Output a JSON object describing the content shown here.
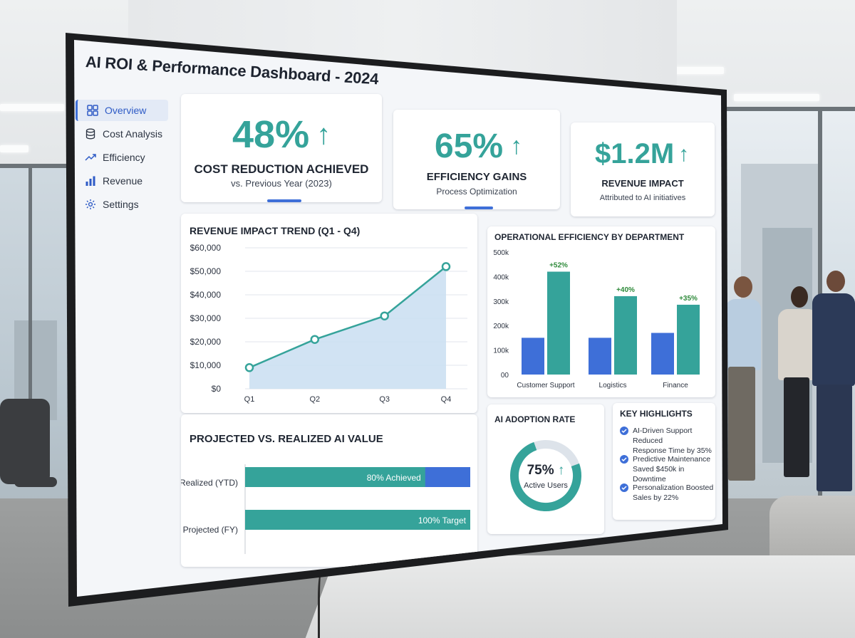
{
  "title": "AI ROI & Performance Dashboard - 2024",
  "colors": {
    "teal": "#35a39a",
    "blue": "#3e6fd8",
    "area_fill": "#c9def1",
    "text": "#1f2632"
  },
  "sidebar": {
    "items": [
      {
        "label": "Overview",
        "icon": "grid-icon",
        "active": true
      },
      {
        "label": "Cost Analysis",
        "icon": "database-icon",
        "active": false
      },
      {
        "label": "Efficiency",
        "icon": "trend-icon",
        "active": false
      },
      {
        "label": "Revenue",
        "icon": "bar-chart-icon",
        "active": false
      },
      {
        "label": "Settings",
        "icon": "gear-icon",
        "active": false
      }
    ]
  },
  "kpis": [
    {
      "value": "48%",
      "arrow": "↑",
      "label": "COST REDUCTION ACHIEVED",
      "sub": "vs. Previous Year (2023)"
    },
    {
      "value": "65%",
      "arrow": "↑",
      "label": "EFFICIENCY GAINS",
      "sub": "Process Optimization"
    },
    {
      "value": "$1.2M",
      "arrow": "↑",
      "label": "REVENUE IMPACT",
      "sub": "Attributed to AI initiatives"
    }
  ],
  "revenue_trend": {
    "title": "REVENUE IMPACT TREND (Q1 - Q4)",
    "y_ticks": [
      "$60,000",
      "$50,000",
      "$40,000",
      "$30,000",
      "$20,000",
      "$10,000",
      "$0"
    ],
    "x_ticks": [
      "Q1",
      "Q2",
      "Q3",
      "Q4"
    ]
  },
  "efficiency": {
    "title": "OPERATIONAL EFFICIENCY BY DEPARTMENT",
    "y_ticks": [
      "500k",
      "400k",
      "300k",
      "200k",
      "100k",
      "00"
    ],
    "departments": [
      "Customer Support",
      "Logistics",
      "Finance"
    ],
    "labels": [
      "+52%",
      "+40%",
      "+35%"
    ]
  },
  "projected": {
    "title": "PROJECTED VS. REALIZED AI VALUE",
    "rows": [
      {
        "label": "Realized (YTD)",
        "text": "80% Achieved"
      },
      {
        "label": "Projected (FY)",
        "text": "100% Target"
      }
    ]
  },
  "adoption": {
    "title": "AI ADOPTION RATE",
    "value": "75%",
    "arrow": "↑",
    "sub": "Active Users"
  },
  "highlights": {
    "title": "KEY HIGHLIGHTS",
    "items": [
      {
        "line1": "AI-Driven Support Reduced",
        "line2": "Response Time by 35%"
      },
      {
        "line1": "Predictive Maintenance",
        "line2": "Saved $450k in Downtime"
      },
      {
        "line1": "Personalization Boosted",
        "line2": "Sales by 22%"
      }
    ]
  },
  "chart_data": [
    {
      "type": "area",
      "title": "REVENUE IMPACT TREND (Q1 - Q4)",
      "categories": [
        "Q1",
        "Q2",
        "Q3",
        "Q4"
      ],
      "values": [
        9000,
        21000,
        31000,
        52000
      ],
      "ylim": [
        0,
        60000
      ]
    },
    {
      "type": "bar",
      "title": "OPERATIONAL EFFICIENCY BY DEPARTMENT",
      "categories": [
        "Customer Support",
        "Logistics",
        "Finance"
      ],
      "series": [
        {
          "values": [
            150000,
            150000,
            170000
          ]
        },
        {
          "values": [
            420000,
            320000,
            285000
          ]
        }
      ],
      "annotations": [
        "+52%",
        "+40%",
        "+35%"
      ],
      "ylim": [
        0,
        500000
      ]
    },
    {
      "type": "bar",
      "title": "PROJECTED VS. REALIZED AI VALUE",
      "categories": [
        "Realized (YTD)",
        "Projected (FY)"
      ],
      "values": [
        80,
        100
      ],
      "annotations": [
        "80% Achieved",
        "100% Target"
      ]
    },
    {
      "type": "pie",
      "title": "AI ADOPTION RATE",
      "values": [
        75,
        25
      ],
      "annotations": [
        "75%"
      ]
    }
  ]
}
